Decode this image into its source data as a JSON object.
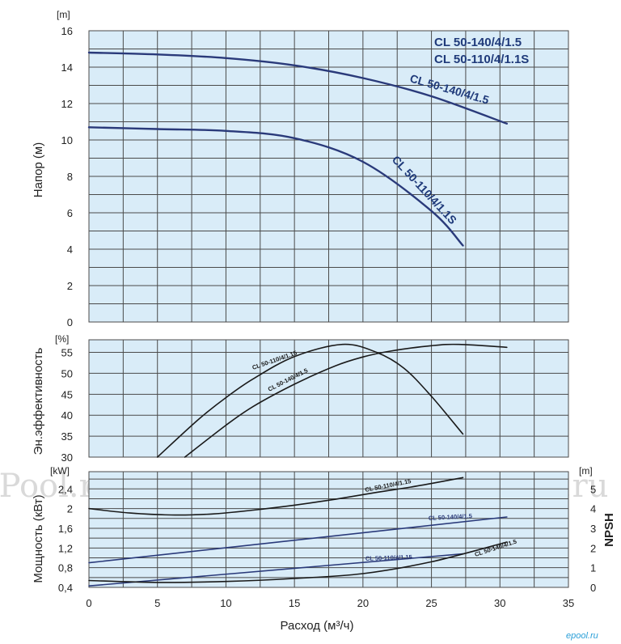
{
  "colors": {
    "panel": "#d9ecf8",
    "grid": "#4a4a4a",
    "blue": "#2a3a7a",
    "black": "#1a1a1a"
  },
  "watermark": "ePool.ru",
  "footer_logo": "epool.ru",
  "chart_data": [
    {
      "type": "line",
      "panel": "head",
      "ylabel": "Напор (м)",
      "yunit": "[m]",
      "xlim": [
        0,
        35
      ],
      "ylim": [
        0,
        16
      ],
      "yticks": [
        "0",
        "2",
        "4",
        "6",
        "8",
        "10",
        "12",
        "14",
        "16"
      ],
      "legend": [
        "CL 50-140/4/1.5",
        "CL 50-110/4/1.1S"
      ],
      "series": [
        {
          "name": "CL 50-140/4/1.5",
          "color": "blue",
          "x": [
            0,
            5,
            10,
            15,
            20,
            25,
            30.5
          ],
          "y": [
            14.8,
            14.7,
            14.5,
            14.1,
            13.4,
            12.4,
            10.9
          ]
        },
        {
          "name": "CL 50-110/4/1.1S",
          "color": "blue",
          "x": [
            0,
            5,
            10,
            15,
            20,
            25,
            27.3
          ],
          "y": [
            10.7,
            10.6,
            10.5,
            10.1,
            8.8,
            6.1,
            4.2
          ]
        }
      ]
    },
    {
      "type": "line",
      "panel": "efficiency",
      "ylabel": "Эн.эффективность",
      "yunit": "[%]",
      "xlim": [
        0,
        35
      ],
      "ylim": [
        30,
        58
      ],
      "yticks": [
        "30",
        "35",
        "40",
        "45",
        "50",
        "55"
      ],
      "series": [
        {
          "name": "CL 50-110/4/1.15",
          "color": "black",
          "x": [
            5,
            8,
            10,
            12,
            15,
            18.5,
            21,
            23,
            25,
            27.3
          ],
          "y": [
            30,
            39,
            44.2,
            48.7,
            54,
            56.9,
            55,
            51.2,
            44.5,
            35.5
          ]
        },
        {
          "name": "CL 50-140/4/1.5",
          "color": "black",
          "x": [
            7,
            10,
            12,
            15,
            18,
            20,
            22,
            25,
            27,
            30.5
          ],
          "y": [
            30,
            37.6,
            42.1,
            47.4,
            51.8,
            53.9,
            55.3,
            56.6,
            56.9,
            56.2
          ]
        }
      ]
    },
    {
      "type": "line",
      "panel": "power_npsh",
      "ylabel": "Мощность (кВт)",
      "yunit": "[kW]",
      "y2label": "NPSH",
      "y2unit": "[m]",
      "xlabel": "Расход (м³/ч)",
      "xlim": [
        0,
        35
      ],
      "ylim": [
        0.4,
        2.75
      ],
      "y2lim": [
        0,
        5.875
      ],
      "xticks": [
        "0",
        "5",
        "10",
        "15",
        "20",
        "25",
        "30",
        "35"
      ],
      "yticks": [
        "0,4",
        "0,8",
        "1,2",
        "1,6",
        "2",
        "2,4"
      ],
      "y2ticks": [
        "0",
        "1",
        "2",
        "3",
        "4",
        "5"
      ],
      "series": [
        {
          "name": "CL 50-110/4/1.15",
          "axis": "power",
          "color": "black",
          "x": [
            0,
            3,
            6,
            9,
            12,
            15,
            18,
            21,
            24,
            27.3
          ],
          "y": [
            2.0,
            1.91,
            1.87,
            1.89,
            1.97,
            2.07,
            2.19,
            2.33,
            2.46,
            2.63
          ]
        },
        {
          "name": "CL 50-140/4/1.5",
          "axis": "power",
          "color": "blue",
          "x": [
            0,
            30.5
          ],
          "y": [
            0.9,
            1.83
          ]
        },
        {
          "name": "CL 50-110/4/1.15",
          "axis": "power",
          "color": "blue",
          "x": [
            0,
            27.3
          ],
          "y": [
            0.43,
            1.08
          ]
        },
        {
          "name": "CL 50-140/4/1.5",
          "axis": "npsh",
          "color": "black",
          "x": [
            0,
            5,
            10,
            15,
            20,
            25,
            30.5
          ],
          "y": [
            0.35,
            0.25,
            0.3,
            0.45,
            0.7,
            1.3,
            2.3
          ]
        }
      ]
    }
  ]
}
